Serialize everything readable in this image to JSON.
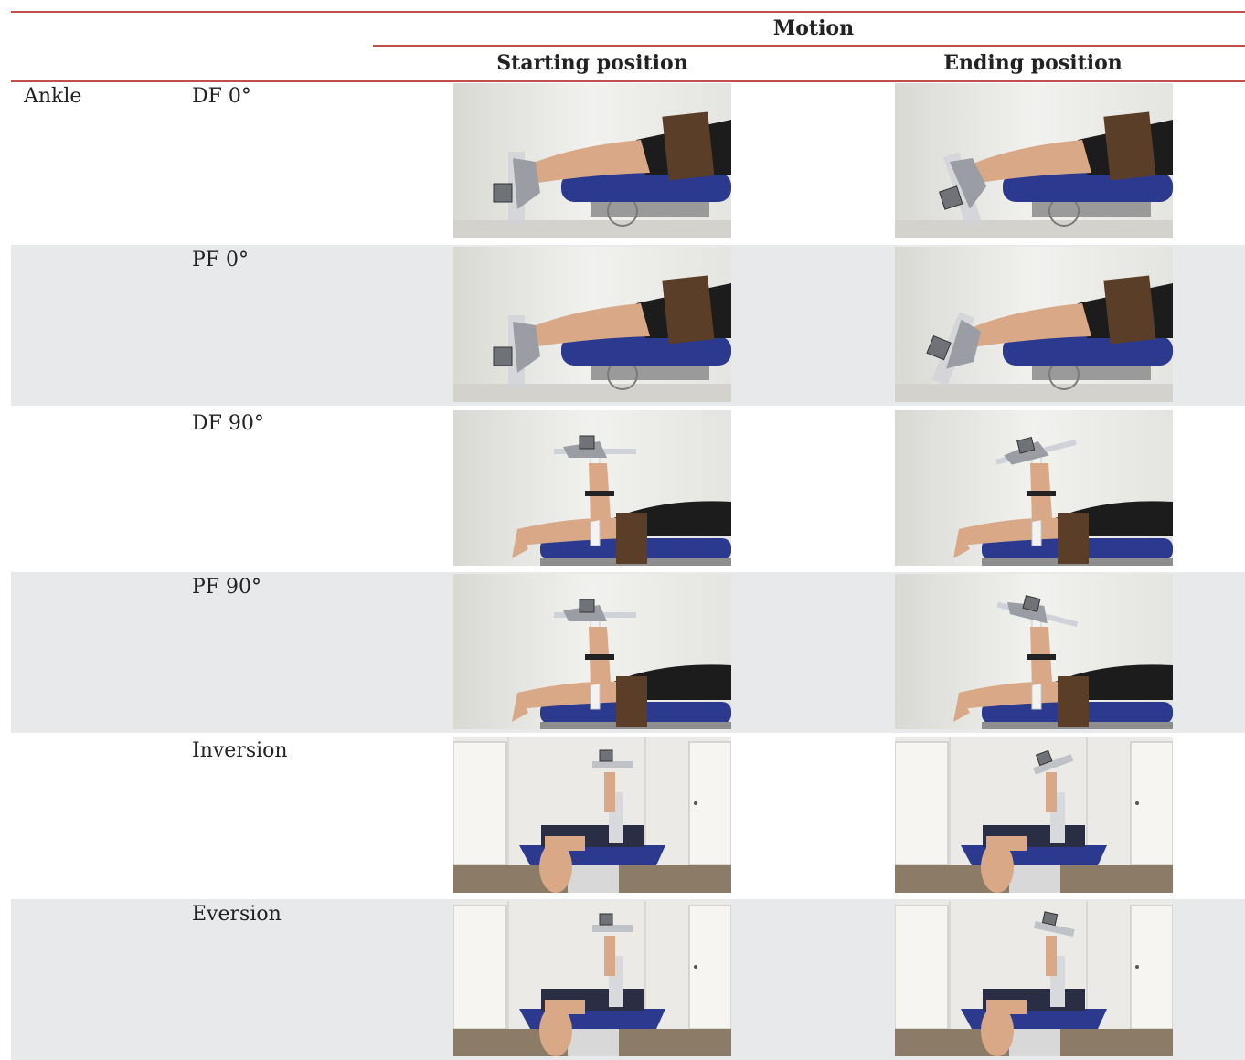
{
  "header": {
    "group_label": "Motion",
    "col_start": "Starting position",
    "col_end": "Ending position"
  },
  "rows": [
    {
      "region": "Ankle",
      "motion": "DF 0°",
      "view": "side-0",
      "start_photo": "photo-side-prone-neutral",
      "end_photo": "photo-side-prone-dorsiflexed"
    },
    {
      "region": "",
      "motion": "PF 0°",
      "view": "side-0",
      "start_photo": "photo-side-prone-neutral",
      "end_photo": "photo-side-prone-plantarflexed"
    },
    {
      "region": "",
      "motion": "DF 90°",
      "view": "side-90",
      "start_photo": "photo-side-knee-flexed-neutral",
      "end_photo": "photo-side-knee-flexed-dorsiflexed"
    },
    {
      "region": "",
      "motion": "PF 90°",
      "view": "side-90",
      "start_photo": "photo-side-knee-flexed-neutral",
      "end_photo": "photo-side-knee-flexed-plantarflexed"
    },
    {
      "region": "",
      "motion": "Inversion",
      "view": "rear",
      "start_photo": "photo-rear-neutral",
      "end_photo": "photo-rear-inverted"
    },
    {
      "region": "",
      "motion": "Eversion",
      "view": "rear",
      "start_photo": "photo-rear-neutral",
      "end_photo": "photo-rear-everted"
    }
  ],
  "colors": {
    "rule": "#c0504d",
    "row_shade": "#e8e9eb",
    "table_blue": "#2b3a8f"
  }
}
